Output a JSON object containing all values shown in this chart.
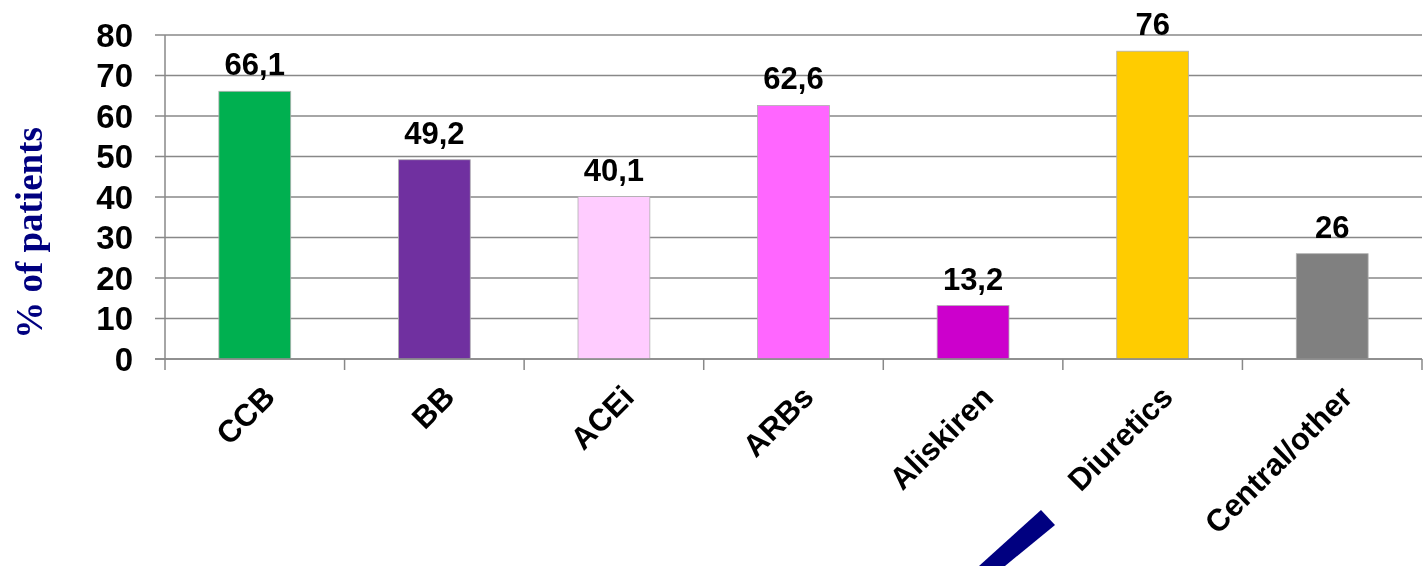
{
  "chart_data": {
    "type": "bar",
    "ylabel": "% of patients",
    "categories": [
      "CCB",
      "BB",
      "ACEi",
      "ARBs",
      "Aliskiren",
      "Diuretics",
      "Central/other"
    ],
    "values": [
      66.1,
      49.2,
      40.1,
      62.6,
      13.2,
      76,
      26
    ],
    "colors": [
      "#00b050",
      "#7030a0",
      "#ffccff",
      "#ff66ff",
      "#cc00cc",
      "#ffcc00",
      "#808080"
    ],
    "value_labels": [
      "66,1",
      "49,2",
      "40,1",
      "62,6",
      "13,2",
      "76",
      "26"
    ],
    "ylim": [
      0,
      80
    ],
    "yticks": [
      0,
      10,
      20,
      30,
      40,
      50,
      60,
      70,
      80
    ],
    "grid": "y"
  }
}
